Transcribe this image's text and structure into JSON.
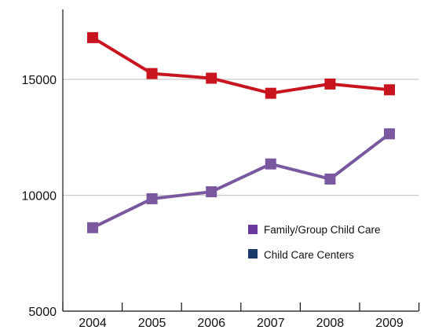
{
  "chart_data": {
    "type": "line",
    "categories": [
      "2004",
      "2005",
      "2006",
      "2007",
      "2008",
      "2009"
    ],
    "series": [
      {
        "name": "Child Care Centers",
        "color": "#c8141e",
        "values": [
          16800,
          15250,
          15050,
          14400,
          14800,
          14550
        ]
      },
      {
        "name": "Family/Group Child Care",
        "color": "#7a58a0",
        "values": [
          8600,
          9850,
          10150,
          11350,
          10700,
          12650
        ]
      }
    ],
    "legend": [
      {
        "label": "Family/Group Child Care",
        "color": "#6a3a9e"
      },
      {
        "label": "Child Care Centers",
        "color": "#1a3a6a"
      }
    ],
    "yticks": [
      5000,
      10000,
      15000
    ],
    "ylim": [
      5000,
      18000
    ],
    "grid": true,
    "legend_position": "lower-right",
    "title": "",
    "xlabel": "",
    "ylabel": ""
  }
}
